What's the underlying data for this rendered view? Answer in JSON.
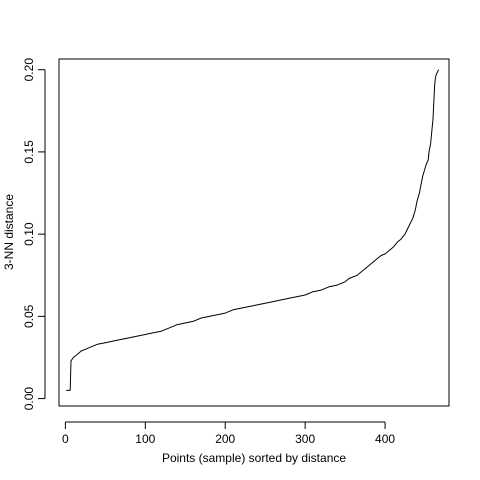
{
  "chart_data": {
    "type": "line",
    "title": "",
    "xlabel": "Points (sample) sorted by distance",
    "ylabel": "3-NN distance",
    "xlim": [
      -8,
      480
    ],
    "ylim": [
      -0.0045,
      0.2065
    ],
    "xticks": [
      0,
      100,
      200,
      300,
      400
    ],
    "xtick_labels": [
      "0",
      "100",
      "200",
      "300",
      "400"
    ],
    "yticks": [
      0.0,
      0.05,
      0.1,
      0.15,
      0.2
    ],
    "ytick_labels": [
      "0.00",
      "0.05",
      "0.10",
      "0.15",
      "0.20"
    ],
    "grid": false,
    "series": [
      {
        "name": "3-NN distance",
        "color": "#000000",
        "x": [
          1,
          6,
          7,
          10,
          15,
          20,
          25,
          30,
          40,
          50,
          60,
          70,
          80,
          90,
          100,
          110,
          120,
          130,
          140,
          150,
          160,
          170,
          180,
          190,
          200,
          210,
          220,
          230,
          240,
          250,
          260,
          270,
          280,
          290,
          300,
          310,
          320,
          330,
          340,
          350,
          355,
          360,
          365,
          370,
          375,
          380,
          385,
          390,
          395,
          400,
          405,
          410,
          415,
          420,
          425,
          430,
          435,
          438,
          440,
          443,
          445,
          447,
          450,
          452,
          454,
          455,
          457,
          458,
          460,
          461,
          462,
          463,
          464,
          465,
          467
        ],
        "y": [
          0.005,
          0.005,
          0.023,
          0.025,
          0.027,
          0.029,
          0.03,
          0.031,
          0.033,
          0.034,
          0.035,
          0.036,
          0.037,
          0.038,
          0.039,
          0.04,
          0.041,
          0.043,
          0.045,
          0.046,
          0.047,
          0.049,
          0.05,
          0.051,
          0.052,
          0.054,
          0.055,
          0.056,
          0.057,
          0.058,
          0.059,
          0.06,
          0.061,
          0.062,
          0.063,
          0.065,
          0.066,
          0.068,
          0.069,
          0.071,
          0.073,
          0.074,
          0.075,
          0.077,
          0.079,
          0.081,
          0.083,
          0.085,
          0.087,
          0.088,
          0.09,
          0.092,
          0.095,
          0.097,
          0.1,
          0.105,
          0.11,
          0.115,
          0.12,
          0.125,
          0.13,
          0.135,
          0.14,
          0.143,
          0.145,
          0.15,
          0.155,
          0.16,
          0.17,
          0.18,
          0.19,
          0.195,
          0.197,
          0.198,
          0.2
        ]
      }
    ]
  }
}
